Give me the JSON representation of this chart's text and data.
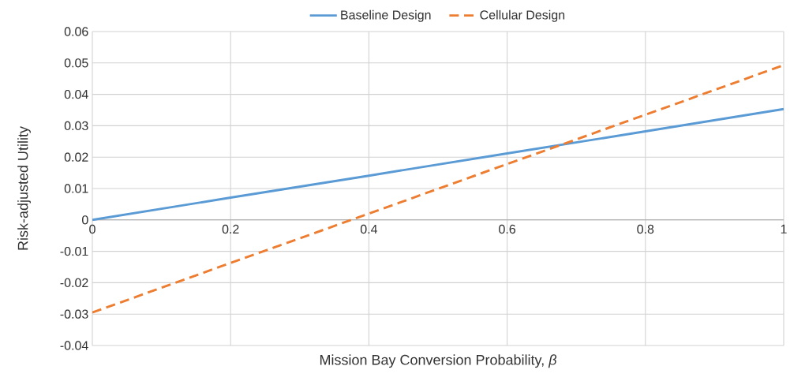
{
  "chart_data": {
    "type": "line",
    "xlabel": "Mission Bay Conversion Probability, *β*",
    "ylabel": "Risk-adjusted Utility",
    "xlim": [
      0,
      1
    ],
    "ylim": [
      -0.04,
      0.06
    ],
    "xticks": [
      0,
      0.2,
      0.4,
      0.6,
      0.8,
      1
    ],
    "yticks": [
      -0.04,
      -0.03,
      -0.02,
      -0.01,
      0,
      0.01,
      0.02,
      0.03,
      0.04,
      0.05,
      0.06
    ],
    "grid": true,
    "legend": "top",
    "marker": "none",
    "series": [
      {
        "name": "Baseline Design",
        "color": "#5b9bd5",
        "line_style": "solid",
        "x": [
          0,
          0.2,
          0.4,
          0.6,
          0.8,
          1
        ],
        "values": [
          0,
          0.0071,
          0.0141,
          0.0212,
          0.0282,
          0.0353
        ]
      },
      {
        "name": "Cellular Design",
        "color": "#ed7d31",
        "line_style": "dashed",
        "x": [
          0,
          0.2,
          0.4,
          0.6,
          0.8,
          1
        ],
        "values": [
          -0.0295,
          -0.0137,
          0.002,
          0.0178,
          0.0335,
          0.0493
        ]
      }
    ]
  }
}
